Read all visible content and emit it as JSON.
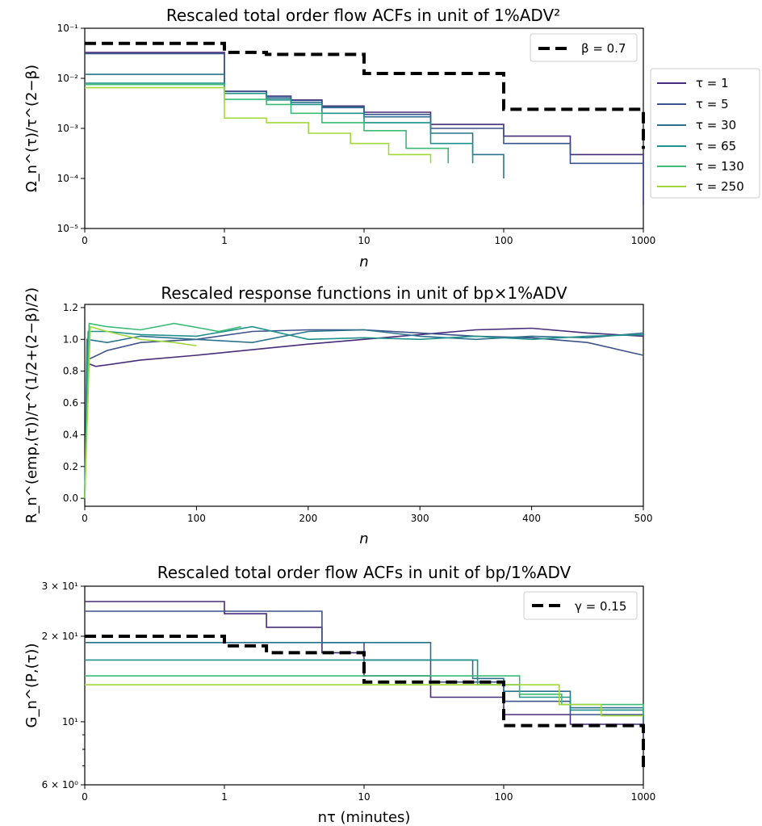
{
  "colors": {
    "tau1": "#472c7a",
    "tau5": "#3b528b",
    "tau30": "#2c728e",
    "tau65": "#21918c",
    "tau130": "#3bbb75",
    "tau250": "#a2d93a",
    "reference": "#000000"
  },
  "legend_main": {
    "items": [
      "τ = 1",
      "τ = 5",
      "τ = 30",
      "τ = 65",
      "τ = 130",
      "τ = 250"
    ]
  },
  "chart_data": [
    {
      "type": "line",
      "title": "Rescaled total order flow ACFs in unit of 1%ADV²",
      "xlabel": "n",
      "ylabel": "Ω_n^(τ)/τ^(2−β)",
      "xscale": "symlog",
      "yscale": "log",
      "xlim": [
        0,
        1000
      ],
      "ylim": [
        1e-05,
        0.1
      ],
      "xticks": [
        "0",
        "1",
        "10",
        "100",
        "1000"
      ],
      "yticks": [
        "10⁻⁵",
        "10⁻⁴",
        "10⁻³",
        "10⁻²",
        "10⁻¹"
      ],
      "legend_placement": "top-right",
      "reference_label": "β = 0.7",
      "reference": {
        "name": "β = 0.7",
        "x": [
          0,
          1,
          1,
          2,
          10,
          100,
          1000
        ],
        "y": [
          0.05,
          0.05,
          0.033,
          0.03,
          0.0125,
          0.0024,
          0.00039
        ]
      },
      "series": [
        {
          "name": "τ = 1",
          "x": [
            0,
            1,
            2,
            3,
            5,
            10,
            30,
            100,
            300,
            1000
          ],
          "y": [
            0.033,
            0.0055,
            0.0044,
            0.0037,
            0.0028,
            0.0021,
            0.0012,
            0.0007,
            0.0003,
            3e-05
          ]
        },
        {
          "name": "τ = 5",
          "x": [
            0,
            1,
            2,
            3,
            5,
            10,
            30,
            100,
            300,
            1000
          ],
          "y": [
            0.031,
            0.0055,
            0.0043,
            0.0036,
            0.0027,
            0.0019,
            0.001,
            0.0005,
            0.0002,
            5e-05
          ]
        },
        {
          "name": "τ = 30",
          "x": [
            0,
            1,
            2,
            3,
            5,
            10,
            30,
            60,
            100
          ],
          "y": [
            0.012,
            0.005,
            0.004,
            0.0033,
            0.0026,
            0.0017,
            0.0008,
            0.0003,
            0.0001
          ]
        },
        {
          "name": "τ = 65",
          "x": [
            0,
            1,
            2,
            3,
            5,
            10,
            30,
            60
          ],
          "y": [
            0.008,
            0.005,
            0.0037,
            0.003,
            0.002,
            0.0013,
            0.0005,
            0.0002
          ]
        },
        {
          "name": "τ = 130",
          "x": [
            0,
            1,
            2,
            3,
            5,
            10,
            20,
            40
          ],
          "y": [
            0.0075,
            0.0038,
            0.003,
            0.002,
            0.0013,
            0.0009,
            0.0004,
            0.0002
          ]
        },
        {
          "name": "τ = 250",
          "x": [
            0,
            1,
            2,
            4,
            8,
            15,
            30
          ],
          "y": [
            0.0065,
            0.0016,
            0.0013,
            0.0008,
            0.0005,
            0.0003,
            0.0002
          ]
        }
      ]
    },
    {
      "type": "line",
      "title": "Rescaled response functions in unit of bp×1%ADV",
      "xlabel": "n",
      "ylabel": "R_n^(emp,(τ))/τ^(1/2+(2−β)/2)",
      "xlim": [
        0,
        500
      ],
      "ylim": [
        -0.05,
        1.22
      ],
      "xticks": [
        0,
        100,
        200,
        300,
        400,
        500
      ],
      "yticks": [
        "0.0",
        "0.2",
        "0.4",
        "0.6",
        "0.8",
        "1.0",
        "1.2"
      ],
      "series": [
        {
          "name": "τ = 1",
          "x": [
            0,
            2,
            10,
            50,
            100,
            200,
            300,
            350,
            400,
            450,
            500
          ],
          "y": [
            0.0,
            0.85,
            0.83,
            0.87,
            0.9,
            0.97,
            1.03,
            1.06,
            1.07,
            1.04,
            1.02
          ]
        },
        {
          "name": "τ = 5",
          "x": [
            0,
            2,
            20,
            50,
            100,
            150,
            200,
            250,
            300,
            350,
            400,
            450,
            500
          ],
          "y": [
            0.0,
            0.87,
            0.93,
            0.98,
            1.0,
            1.05,
            1.06,
            1.06,
            1.04,
            1.02,
            1.01,
            0.98,
            0.9
          ]
        },
        {
          "name": "τ = 30",
          "x": [
            0,
            2,
            20,
            50,
            100,
            150,
            200,
            250,
            300,
            350,
            400,
            450,
            500
          ],
          "y": [
            0.0,
            1.0,
            0.98,
            1.02,
            1.0,
            0.98,
            1.05,
            1.06,
            1.02,
            1.0,
            1.02,
            1.01,
            1.04
          ]
        },
        {
          "name": "τ = 65",
          "x": [
            0,
            3,
            20,
            50,
            100,
            150,
            200,
            250,
            300,
            350,
            400,
            450,
            500
          ],
          "y": [
            0.0,
            1.05,
            1.05,
            1.03,
            1.02,
            1.08,
            1.0,
            1.01,
            1.0,
            1.02,
            1.0,
            1.02,
            1.03
          ]
        },
        {
          "name": "τ = 130",
          "x": [
            0,
            4,
            20,
            50,
            80,
            120,
            140
          ],
          "y": [
            0.0,
            1.1,
            1.08,
            1.06,
            1.1,
            1.05,
            1.08
          ]
        },
        {
          "name": "τ = 250",
          "x": [
            0,
            5,
            20,
            50,
            80,
            100
          ],
          "y": [
            0.0,
            1.08,
            1.05,
            1.0,
            0.98,
            0.96
          ]
        }
      ]
    },
    {
      "type": "line",
      "title": "Rescaled total order flow ACFs in unit of bp/1%ADV",
      "xlabel": "nτ (minutes)",
      "ylabel": "G_n^(P,(τ))",
      "xscale": "symlog",
      "yscale": "log",
      "xlim": [
        0,
        1000
      ],
      "ylim": [
        6,
        30
      ],
      "xticks": [
        "0",
        "1",
        "10",
        "100",
        "1000"
      ],
      "yticks": [
        "6 × 10⁰",
        "10¹",
        "2 × 10¹",
        "3 × 10¹"
      ],
      "legend_placement": "top-right",
      "reference_label": "γ = 0.15",
      "reference": {
        "name": "γ = 0.15",
        "x": [
          0,
          1,
          1,
          2,
          10,
          100,
          1000
        ],
        "y": [
          20,
          20,
          18.5,
          17.5,
          13.8,
          9.7,
          6.9
        ]
      },
      "series": [
        {
          "name": "τ = 1",
          "x": [
            0,
            1,
            2,
            5,
            10,
            30,
            100,
            300,
            1000
          ],
          "y": [
            26.5,
            24,
            21.5,
            17.5,
            14.5,
            12.2,
            10.6,
            9.8,
            8.8
          ]
        },
        {
          "name": "τ = 5",
          "x": [
            0,
            5,
            10,
            30,
            100,
            300,
            1000
          ],
          "y": [
            24.5,
            19,
            16.5,
            13.8,
            11.8,
            10.6,
            9.8
          ]
        },
        {
          "name": "τ = 30",
          "x": [
            0,
            30,
            60,
            100,
            300,
            1000
          ],
          "y": [
            19,
            16.5,
            14.2,
            12.8,
            11.2,
            10.5
          ]
        },
        {
          "name": "τ = 65",
          "x": [
            0,
            65,
            130,
            300,
            1000
          ],
          "y": [
            16.5,
            13.5,
            12.2,
            11,
            10.2
          ]
        },
        {
          "name": "τ = 130",
          "x": [
            0,
            130,
            260,
            1000
          ],
          "y": [
            14.5,
            12.5,
            11.5,
            10.6
          ]
        },
        {
          "name": "τ = 250",
          "x": [
            0,
            250,
            500,
            1000
          ],
          "y": [
            13.5,
            11.5,
            10.5,
            10.5
          ]
        }
      ]
    }
  ]
}
